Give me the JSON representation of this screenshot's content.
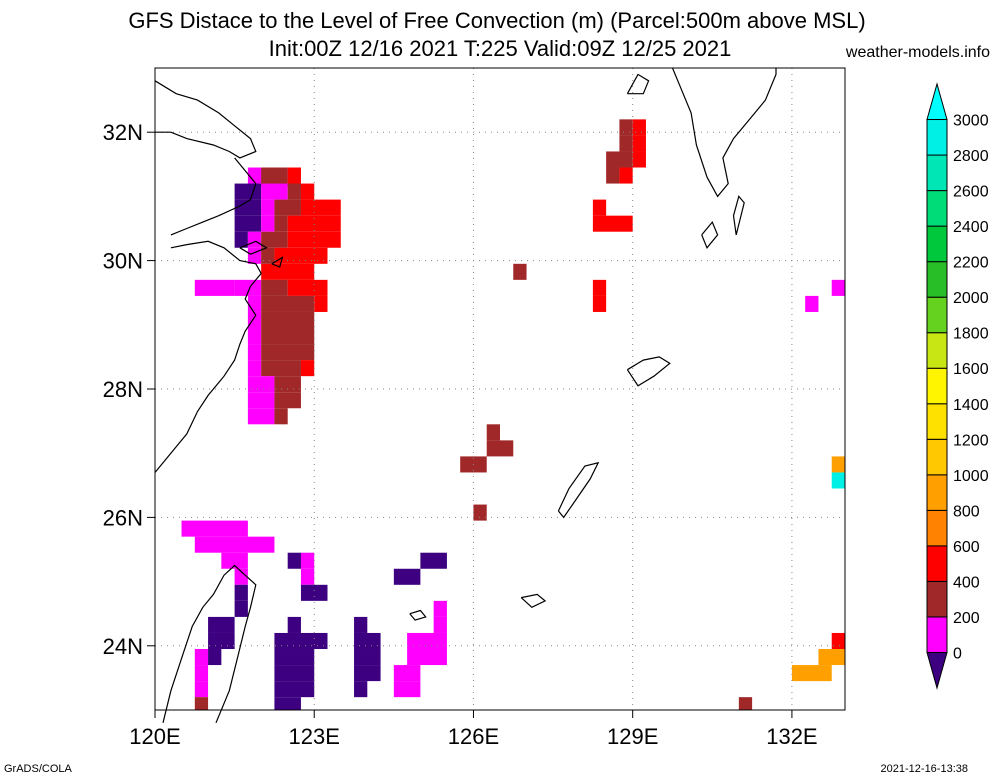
{
  "header": {
    "title_line1": "GFS Distace to the Level of Free Convection (m) (Parcel:500m above MSL)",
    "title_line2": "Init:00Z 12/16 2021 T:225 Valid:09Z 12/25 2021",
    "site": "weather-models.info"
  },
  "footer": {
    "left": "GrADS/COLA",
    "right": "2021-12-16-13:38"
  },
  "map": {
    "lon_range": [
      120,
      133
    ],
    "lat_range": [
      23,
      33
    ],
    "lon_ticks": [
      {
        "v": 120,
        "label": "120E"
      },
      {
        "v": 123,
        "label": "123E"
      },
      {
        "v": 126,
        "label": "126E"
      },
      {
        "v": 129,
        "label": "129E"
      },
      {
        "v": 132,
        "label": "132E"
      }
    ],
    "lat_ticks": [
      {
        "v": 24,
        "label": "24N"
      },
      {
        "v": 26,
        "label": "26N"
      },
      {
        "v": 28,
        "label": "28N"
      },
      {
        "v": 30,
        "label": "30N"
      },
      {
        "v": 32,
        "label": "32N"
      }
    ],
    "grid": true
  },
  "colorbar": {
    "levels": [
      "0",
      "200",
      "400",
      "600",
      "800",
      "1000",
      "1200",
      "1400",
      "1600",
      "1800",
      "2000",
      "2200",
      "2400",
      "2600",
      "2800",
      "3000"
    ],
    "colors": [
      "#3c0080",
      "#ff00ff",
      "#a02828",
      "#ff0000",
      "#ff8200",
      "#ffa000",
      "#ffc800",
      "#ffe100",
      "#fff500",
      "#c8e614",
      "#64d21e",
      "#28be28",
      "#00c83c",
      "#00dc78",
      "#00e6b4",
      "#00f0e6",
      "#00ffff"
    ]
  },
  "field_cells": [
    [
      121.75,
      31.45,
      0.75,
      0.3,
      "#ff00ff"
    ],
    [
      122.0,
      31.45,
      0.5,
      0.3,
      "#a02828"
    ],
    [
      122.5,
      31.45,
      0.25,
      0.3,
      "#ff0000"
    ],
    [
      121.5,
      31.2,
      0.5,
      0.25,
      "#3c0080"
    ],
    [
      122.0,
      31.2,
      0.5,
      0.25,
      "#ff00ff"
    ],
    [
      122.5,
      31.2,
      0.25,
      0.25,
      "#a02828"
    ],
    [
      122.75,
      31.2,
      0.25,
      0.25,
      "#ff0000"
    ],
    [
      121.5,
      30.95,
      0.5,
      0.25,
      "#3c0080"
    ],
    [
      122.0,
      30.95,
      0.25,
      0.25,
      "#ff00ff"
    ],
    [
      122.25,
      30.95,
      0.5,
      0.25,
      "#a02828"
    ],
    [
      122.75,
      30.95,
      0.75,
      0.25,
      "#ff0000"
    ],
    [
      121.5,
      30.7,
      0.5,
      0.25,
      "#3c0080"
    ],
    [
      122.0,
      30.7,
      0.25,
      0.25,
      "#ff00ff"
    ],
    [
      122.25,
      30.7,
      0.25,
      0.25,
      "#a02828"
    ],
    [
      122.5,
      30.7,
      1.0,
      0.25,
      "#ff0000"
    ],
    [
      121.5,
      30.45,
      0.25,
      0.25,
      "#3c0080"
    ],
    [
      121.75,
      30.45,
      0.25,
      0.25,
      "#ff00ff"
    ],
    [
      122.0,
      30.45,
      0.5,
      0.25,
      "#a02828"
    ],
    [
      122.5,
      30.45,
      1.0,
      0.25,
      "#ff0000"
    ],
    [
      121.75,
      30.2,
      0.25,
      0.25,
      "#ff00ff"
    ],
    [
      122.0,
      30.2,
      0.25,
      0.25,
      "#a02828"
    ],
    [
      122.25,
      30.2,
      1.0,
      0.25,
      "#ff0000"
    ],
    [
      122.0,
      29.95,
      1.0,
      0.25,
      "#ff0000"
    ],
    [
      120.75,
      29.7,
      0.75,
      0.25,
      "#ff00ff"
    ],
    [
      121.5,
      29.7,
      0.5,
      0.25,
      "#ff00ff"
    ],
    [
      122.0,
      29.7,
      0.5,
      0.25,
      "#a02828"
    ],
    [
      122.5,
      29.7,
      0.75,
      0.25,
      "#ff0000"
    ],
    [
      121.75,
      29.45,
      0.25,
      0.25,
      "#ff00ff"
    ],
    [
      122.0,
      29.45,
      1.0,
      0.25,
      "#a02828"
    ],
    [
      123.0,
      29.45,
      0.25,
      0.25,
      "#ff0000"
    ],
    [
      121.75,
      29.2,
      0.25,
      0.25,
      "#ff00ff"
    ],
    [
      122.0,
      29.2,
      1.0,
      0.25,
      "#a02828"
    ],
    [
      121.75,
      28.95,
      0.25,
      0.25,
      "#ff00ff"
    ],
    [
      122.0,
      28.95,
      1.0,
      0.25,
      "#a02828"
    ],
    [
      121.75,
      28.7,
      0.25,
      0.25,
      "#ff00ff"
    ],
    [
      122.0,
      28.7,
      1.0,
      0.25,
      "#a02828"
    ],
    [
      121.75,
      28.45,
      0.25,
      0.25,
      "#ff00ff"
    ],
    [
      122.0,
      28.45,
      0.75,
      0.25,
      "#a02828"
    ],
    [
      122.75,
      28.45,
      0.25,
      0.25,
      "#ff0000"
    ],
    [
      121.75,
      28.2,
      0.5,
      0.25,
      "#ff00ff"
    ],
    [
      122.25,
      28.2,
      0.5,
      0.25,
      "#a02828"
    ],
    [
      121.75,
      27.95,
      0.5,
      0.25,
      "#ff00ff"
    ],
    [
      122.25,
      27.95,
      0.5,
      0.25,
      "#a02828"
    ],
    [
      121.75,
      27.7,
      0.5,
      0.25,
      "#ff00ff"
    ],
    [
      122.25,
      27.7,
      0.25,
      0.25,
      "#a02828"
    ],
    [
      128.75,
      32.2,
      0.25,
      0.25,
      "#a02828"
    ],
    [
      129.0,
      32.2,
      0.25,
      0.25,
      "#ff0000"
    ],
    [
      128.75,
      31.95,
      0.25,
      0.25,
      "#a02828"
    ],
    [
      129.0,
      31.95,
      0.25,
      0.25,
      "#ff0000"
    ],
    [
      128.5,
      31.7,
      0.5,
      0.25,
      "#a02828"
    ],
    [
      129.0,
      31.7,
      0.25,
      0.25,
      "#ff0000"
    ],
    [
      128.5,
      31.45,
      0.25,
      0.25,
      "#a02828"
    ],
    [
      128.75,
      31.45,
      0.25,
      0.25,
      "#ff0000"
    ],
    [
      128.25,
      30.95,
      0.25,
      0.25,
      "#ff0000"
    ],
    [
      128.25,
      30.7,
      0.75,
      0.25,
      "#ff0000"
    ],
    [
      126.75,
      29.95,
      0.25,
      0.25,
      "#a02828"
    ],
    [
      128.25,
      29.7,
      0.25,
      0.25,
      "#ff0000"
    ],
    [
      128.25,
      29.45,
      0.25,
      0.25,
      "#ff0000"
    ],
    [
      132.75,
      29.7,
      0.5,
      0.25,
      "#ff00ff"
    ],
    [
      132.25,
      29.45,
      0.25,
      0.25,
      "#ff00ff"
    ],
    [
      126.25,
      27.45,
      0.25,
      0.25,
      "#a02828"
    ],
    [
      126.25,
      27.2,
      0.5,
      0.25,
      "#a02828"
    ],
    [
      125.75,
      26.95,
      0.5,
      0.25,
      "#a02828"
    ],
    [
      126.0,
      26.2,
      0.25,
      0.25,
      "#a02828"
    ],
    [
      132.75,
      26.95,
      0.25,
      0.25,
      "#ffa000"
    ],
    [
      132.75,
      26.7,
      0.25,
      0.25,
      "#00f0e6"
    ],
    [
      120.5,
      25.95,
      1.25,
      0.25,
      "#ff00ff"
    ],
    [
      120.75,
      25.7,
      1.5,
      0.25,
      "#ff00ff"
    ],
    [
      121.25,
      25.45,
      0.5,
      0.25,
      "#ff00ff"
    ],
    [
      122.5,
      25.45,
      0.25,
      0.25,
      "#3c0080"
    ],
    [
      122.75,
      25.45,
      0.25,
      0.25,
      "#ff00ff"
    ],
    [
      125.0,
      25.45,
      0.5,
      0.25,
      "#3c0080"
    ],
    [
      121.5,
      25.2,
      0.25,
      0.25,
      "#ff00ff"
    ],
    [
      122.75,
      25.2,
      0.25,
      0.25,
      "#ff00ff"
    ],
    [
      124.5,
      25.2,
      0.5,
      0.25,
      "#3c0080"
    ],
    [
      121.5,
      24.95,
      0.25,
      0.25,
      "#3c0080"
    ],
    [
      122.75,
      24.95,
      0.5,
      0.25,
      "#3c0080"
    ],
    [
      121.5,
      24.7,
      0.25,
      0.25,
      "#3c0080"
    ],
    [
      125.25,
      24.7,
      0.25,
      0.25,
      "#ff00ff"
    ],
    [
      121.0,
      24.45,
      0.5,
      0.25,
      "#3c0080"
    ],
    [
      122.5,
      24.45,
      0.25,
      0.25,
      "#3c0080"
    ],
    [
      123.75,
      24.45,
      0.25,
      0.25,
      "#3c0080"
    ],
    [
      125.25,
      24.45,
      0.25,
      0.25,
      "#ff00ff"
    ],
    [
      121.0,
      24.2,
      0.5,
      0.25,
      "#3c0080"
    ],
    [
      122.25,
      24.2,
      1.0,
      0.25,
      "#3c0080"
    ],
    [
      123.75,
      24.2,
      0.5,
      0.25,
      "#3c0080"
    ],
    [
      124.75,
      24.2,
      0.75,
      0.25,
      "#ff00ff"
    ],
    [
      120.75,
      23.95,
      0.25,
      0.25,
      "#ff00ff"
    ],
    [
      121.0,
      23.95,
      0.25,
      0.25,
      "#3c0080"
    ],
    [
      122.25,
      23.95,
      0.75,
      0.25,
      "#3c0080"
    ],
    [
      123.75,
      23.95,
      0.5,
      0.25,
      "#3c0080"
    ],
    [
      124.75,
      23.95,
      0.75,
      0.25,
      "#ff00ff"
    ],
    [
      132.5,
      23.95,
      0.5,
      0.25,
      "#ffa000"
    ],
    [
      120.75,
      23.7,
      0.25,
      0.25,
      "#ff00ff"
    ],
    [
      122.25,
      23.7,
      0.75,
      0.25,
      "#3c0080"
    ],
    [
      123.75,
      23.7,
      0.5,
      0.25,
      "#3c0080"
    ],
    [
      124.5,
      23.7,
      0.5,
      0.25,
      "#ff00ff"
    ],
    [
      132.0,
      23.7,
      0.75,
      0.25,
      "#ffa000"
    ],
    [
      120.75,
      23.45,
      0.25,
      0.25,
      "#ff00ff"
    ],
    [
      122.25,
      23.45,
      0.75,
      0.25,
      "#3c0080"
    ],
    [
      123.75,
      23.45,
      0.25,
      0.25,
      "#3c0080"
    ],
    [
      124.5,
      23.45,
      0.5,
      0.25,
      "#ff00ff"
    ],
    [
      120.75,
      23.2,
      0.25,
      0.25,
      "#a02828"
    ],
    [
      122.25,
      23.2,
      0.5,
      0.25,
      "#3c0080"
    ],
    [
      131.0,
      23.2,
      0.25,
      0.25,
      "#a02828"
    ],
    [
      132.75,
      24.2,
      0.5,
      0.25,
      "#ff0000"
    ]
  ],
  "coast_lines": [
    [
      [
        120.0,
        32.8
      ],
      [
        120.4,
        32.6
      ],
      [
        120.8,
        32.5
      ],
      [
        121.2,
        32.3
      ],
      [
        121.5,
        32.1
      ],
      [
        121.8,
        31.9
      ],
      [
        121.9,
        31.7
      ],
      [
        121.6,
        31.6
      ],
      [
        121.4,
        31.7
      ],
      [
        121.1,
        31.8
      ],
      [
        120.6,
        31.9
      ],
      [
        120.3,
        32.0
      ],
      [
        120.0,
        32.0
      ]
    ],
    [
      [
        121.5,
        31.6
      ],
      [
        121.7,
        31.4
      ],
      [
        121.9,
        31.2
      ],
      [
        121.8,
        30.95
      ],
      [
        121.6,
        30.85
      ],
      [
        121.2,
        30.7
      ],
      [
        120.9,
        30.6
      ],
      [
        120.6,
        30.5
      ],
      [
        120.3,
        30.4
      ]
    ],
    [
      [
        120.3,
        30.2
      ],
      [
        120.6,
        30.25
      ],
      [
        121.0,
        30.3
      ],
      [
        121.3,
        30.2
      ],
      [
        121.6,
        30.0
      ],
      [
        121.9,
        29.95
      ],
      [
        122.0,
        29.8
      ],
      [
        121.8,
        29.6
      ],
      [
        121.7,
        29.4
      ],
      [
        121.9,
        29.15
      ],
      [
        121.7,
        28.9
      ],
      [
        121.6,
        28.7
      ],
      [
        121.5,
        28.45
      ],
      [
        121.3,
        28.2
      ],
      [
        121.0,
        27.9
      ],
      [
        120.8,
        27.65
      ],
      [
        120.6,
        27.3
      ],
      [
        120.4,
        27.1
      ],
      [
        120.2,
        26.9
      ],
      [
        120.0,
        26.7
      ]
    ],
    [
      [
        121.15,
        22.8
      ],
      [
        121.4,
        23.3
      ],
      [
        121.55,
        23.8
      ],
      [
        121.7,
        24.3
      ],
      [
        121.8,
        24.6
      ],
      [
        121.9,
        24.95
      ],
      [
        121.7,
        25.1
      ],
      [
        121.5,
        25.25
      ],
      [
        121.3,
        25.1
      ],
      [
        121.1,
        24.8
      ],
      [
        120.9,
        24.6
      ],
      [
        120.7,
        24.3
      ],
      [
        120.5,
        23.8
      ],
      [
        120.3,
        23.3
      ],
      [
        120.15,
        22.8
      ]
    ],
    [
      [
        129.75,
        33.0
      ],
      [
        129.9,
        32.7
      ],
      [
        130.1,
        32.3
      ],
      [
        130.2,
        31.8
      ],
      [
        130.4,
        31.3
      ],
      [
        130.6,
        31.0
      ],
      [
        130.8,
        31.2
      ],
      [
        130.7,
        31.6
      ],
      [
        130.9,
        31.9
      ],
      [
        131.2,
        32.2
      ],
      [
        131.5,
        32.5
      ],
      [
        131.7,
        32.9
      ],
      [
        131.7,
        33.0
      ]
    ],
    [
      [
        130.3,
        30.4
      ],
      [
        130.5,
        30.6
      ],
      [
        130.6,
        30.4
      ],
      [
        130.4,
        30.2
      ],
      [
        130.3,
        30.4
      ]
    ],
    [
      [
        130.95,
        30.4
      ],
      [
        131.1,
        30.9
      ],
      [
        131.0,
        31.0
      ],
      [
        130.9,
        30.7
      ],
      [
        130.95,
        30.4
      ]
    ],
    [
      [
        128.9,
        28.3
      ],
      [
        129.2,
        28.45
      ],
      [
        129.5,
        28.5
      ],
      [
        129.7,
        28.4
      ],
      [
        129.4,
        28.2
      ],
      [
        129.1,
        28.05
      ],
      [
        128.9,
        28.3
      ]
    ],
    [
      [
        127.6,
        26.1
      ],
      [
        127.8,
        26.45
      ],
      [
        128.1,
        26.8
      ],
      [
        128.35,
        26.85
      ],
      [
        128.2,
        26.6
      ],
      [
        127.95,
        26.3
      ],
      [
        127.7,
        26.0
      ],
      [
        127.6,
        26.1
      ]
    ],
    [
      [
        126.9,
        24.75
      ],
      [
        127.2,
        24.8
      ],
      [
        127.35,
        24.7
      ],
      [
        127.1,
        24.6
      ],
      [
        126.9,
        24.75
      ]
    ],
    [
      [
        124.8,
        24.5
      ],
      [
        125.0,
        24.55
      ],
      [
        125.1,
        24.45
      ],
      [
        124.9,
        24.4
      ],
      [
        124.8,
        24.5
      ]
    ],
    [
      [
        121.6,
        30.2
      ],
      [
        121.9,
        30.3
      ],
      [
        122.1,
        30.2
      ],
      [
        121.8,
        30.1
      ],
      [
        121.6,
        30.2
      ]
    ],
    [
      [
        122.2,
        29.95
      ],
      [
        122.4,
        30.05
      ],
      [
        122.35,
        29.9
      ],
      [
        122.2,
        29.95
      ]
    ],
    [
      [
        128.9,
        32.6
      ],
      [
        129.1,
        32.9
      ],
      [
        129.3,
        32.8
      ],
      [
        129.2,
        32.6
      ],
      [
        128.9,
        32.6
      ]
    ]
  ]
}
